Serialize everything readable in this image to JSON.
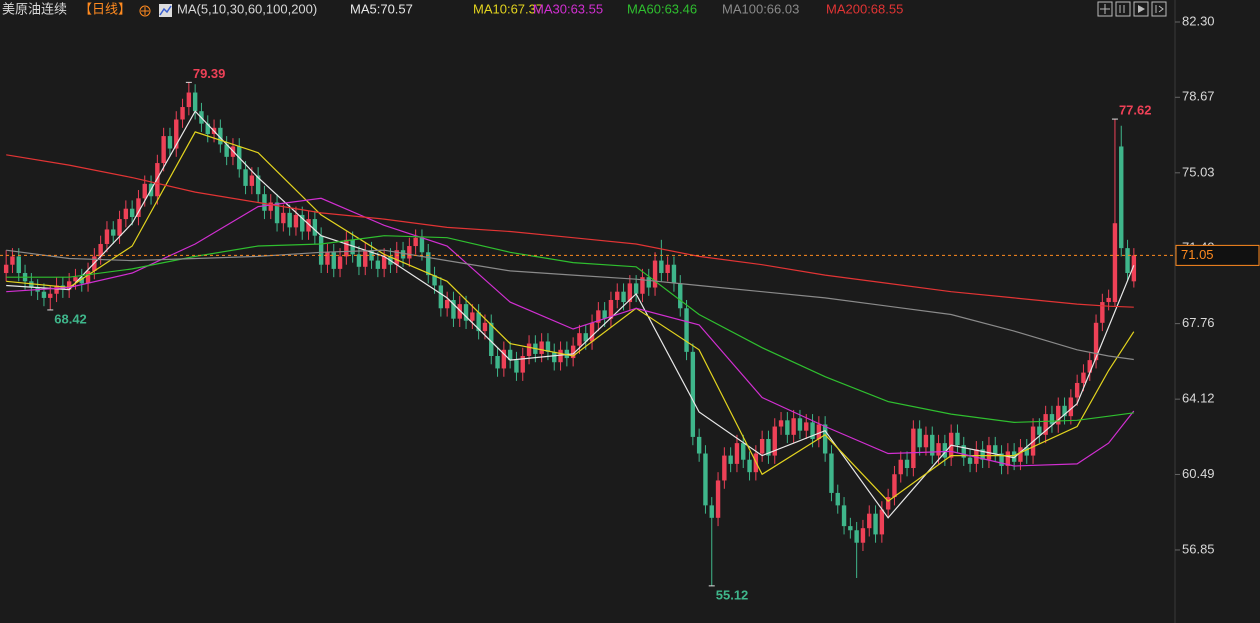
{
  "chart_data": {
    "type": "candlestick",
    "title": "美原油连续",
    "subtitle": "【日线】",
    "ma_label": "MA(5,10,30,60,100,200)",
    "up_color": "#ee4157",
    "down_color": "#3fb68b",
    "ylim": [
      53.33,
      83.36
    ],
    "yticks": [
      {
        "value": 82.3,
        "label": "82.30"
      },
      78.67,
      75.03,
      {
        "value": 71.4,
        "label": "71.40"
      },
      67.76,
      64.12,
      60.49,
      56.85
    ],
    "open": [
      70.2,
      70.6,
      71.0,
      70.2,
      69.8,
      69.5,
      69.3,
      69.0,
      69.2,
      69.6,
      69.4,
      69.8,
      70.0,
      69.7,
      70.3,
      71.0,
      71.6,
      72.3,
      72.0,
      72.8,
      73.3,
      72.9,
      73.8,
      74.5,
      73.9,
      75.5,
      76.8,
      76.2,
      77.6,
      78.2,
      78.9,
      78.0,
      77.4,
      76.9,
      77.2,
      76.4,
      75.8,
      76.3,
      75.2,
      74.4,
      74.9,
      74.0,
      73.2,
      73.6,
      72.6,
      73.1,
      72.4,
      73.0,
      72.2,
      72.8,
      72.0,
      70.6,
      71.2,
      70.4,
      71.0,
      71.8,
      71.1,
      70.5,
      71.3,
      70.8,
      70.4,
      71.0,
      70.6,
      71.3,
      70.9,
      71.5,
      71.9,
      71.2,
      70.1,
      69.6,
      68.5,
      68.9,
      68.0,
      68.7,
      67.9,
      68.3,
      67.4,
      67.8,
      66.2,
      65.6,
      66.5,
      66.0,
      65.4,
      66.2,
      66.8,
      66.3,
      66.9,
      66.4,
      65.9,
      66.5,
      66.1,
      66.7,
      67.3,
      66.9,
      67.8,
      68.4,
      68.0,
      68.9,
      69.3,
      68.8,
      69.7,
      69.2,
      70.0,
      69.5,
      70.8,
      70.2,
      70.6,
      69.7,
      68.5,
      66.4,
      62.3,
      61.5,
      59.0,
      58.4,
      60.2,
      61.4,
      61.0,
      62.0,
      61.2,
      60.6,
      61.5,
      62.2,
      61.4,
      62.8,
      63.1,
      62.4,
      63.2,
      62.6,
      63.0,
      62.2,
      62.9,
      61.5,
      59.6,
      59.0,
      58.0,
      57.8,
      57.2,
      57.9,
      58.6,
      57.6,
      58.8,
      59.4,
      60.5,
      61.2,
      60.8,
      62.7,
      61.8,
      62.4,
      61.4,
      62.0,
      61.3,
      62.5,
      61.9,
      61.3,
      61.0,
      61.7,
      61.2,
      61.9,
      61.5,
      60.9,
      61.6,
      61.1,
      61.8,
      61.4,
      62.8,
      62.4,
      63.4,
      62.9,
      63.8,
      63.3,
      64.2,
      64.9,
      65.4,
      66.0,
      67.8,
      68.8,
      68.8,
      76.3,
      71.4,
      69.8
    ],
    "high": [
      71.3,
      71.4,
      71.4,
      70.6,
      70.2,
      69.9,
      69.7,
      69.6,
      70.0,
      70.0,
      70.2,
      70.4,
      70.4,
      70.7,
      71.4,
      72.0,
      72.7,
      72.7,
      73.2,
      73.7,
      73.7,
      74.2,
      74.9,
      74.9,
      75.9,
      77.2,
      77.2,
      78.0,
      78.6,
      79.39,
      79.3,
      78.4,
      77.8,
      77.6,
      77.6,
      76.8,
      76.7,
      76.7,
      75.6,
      75.3,
      75.3,
      74.4,
      74.0,
      74.0,
      73.5,
      73.5,
      73.4,
      73.4,
      73.2,
      73.2,
      72.4,
      71.6,
      71.6,
      71.4,
      72.2,
      72.2,
      71.5,
      71.7,
      71.7,
      71.2,
      71.4,
      71.4,
      71.7,
      71.7,
      71.9,
      72.3,
      72.3,
      71.6,
      70.5,
      70.0,
      69.3,
      69.3,
      69.1,
      69.1,
      68.7,
      68.7,
      68.2,
      68.2,
      66.6,
      66.9,
      66.9,
      66.4,
      66.6,
      67.2,
      67.2,
      67.3,
      67.3,
      66.8,
      66.9,
      66.9,
      67.1,
      67.7,
      67.7,
      68.2,
      68.8,
      68.8,
      69.3,
      69.7,
      69.7,
      70.1,
      70.1,
      70.4,
      70.4,
      71.2,
      71.8,
      71.0,
      71.0,
      70.1,
      68.9,
      66.8,
      62.7,
      61.9,
      59.4,
      60.6,
      61.8,
      61.8,
      62.4,
      62.4,
      61.6,
      61.9,
      62.6,
      62.6,
      63.2,
      63.5,
      63.5,
      63.6,
      63.6,
      63.4,
      63.4,
      63.3,
      63.3,
      61.9,
      60.0,
      59.4,
      58.4,
      58.2,
      58.3,
      59.0,
      59.0,
      59.2,
      59.8,
      60.9,
      61.6,
      61.6,
      63.1,
      63.1,
      62.8,
      62.8,
      62.4,
      62.4,
      62.9,
      62.9,
      62.3,
      61.7,
      62.1,
      62.1,
      62.3,
      62.3,
      61.9,
      62.0,
      62.0,
      62.2,
      62.2,
      63.2,
      63.2,
      63.8,
      63.8,
      64.2,
      64.2,
      64.6,
      65.3,
      65.8,
      66.4,
      68.2,
      69.2,
      69.4,
      77.62,
      77.3,
      71.8,
      71.4
    ],
    "low": [
      69.8,
      70.2,
      69.8,
      69.4,
      69.1,
      68.9,
      68.6,
      68.42,
      68.8,
      69.0,
      69.0,
      69.4,
      69.3,
      69.3,
      69.9,
      70.6,
      71.2,
      71.6,
      71.6,
      72.4,
      72.5,
      72.5,
      73.4,
      73.5,
      73.5,
      75.1,
      75.8,
      75.8,
      77.2,
      77.8,
      77.6,
      77.0,
      76.5,
      76.5,
      76.0,
      75.4,
      75.4,
      74.8,
      74.0,
      74.0,
      73.6,
      72.8,
      72.8,
      72.2,
      72.2,
      72.0,
      72.0,
      71.8,
      71.8,
      71.6,
      70.2,
      70.2,
      70.0,
      70.0,
      70.6,
      70.7,
      70.1,
      70.1,
      70.4,
      70.0,
      70.0,
      70.2,
      70.2,
      70.5,
      70.5,
      71.1,
      70.8,
      69.7,
      69.2,
      68.1,
      68.1,
      67.6,
      67.6,
      67.5,
      67.5,
      67.0,
      67.0,
      65.8,
      65.2,
      65.2,
      65.6,
      65.0,
      65.0,
      65.8,
      65.9,
      65.9,
      66.0,
      65.5,
      65.5,
      65.7,
      65.7,
      66.3,
      66.5,
      66.5,
      67.4,
      67.6,
      67.6,
      68.5,
      68.4,
      68.4,
      68.8,
      68.8,
      69.1,
      69.1,
      69.8,
      69.8,
      69.3,
      68.1,
      66.0,
      61.9,
      61.1,
      58.6,
      55.12,
      58.0,
      59.8,
      60.6,
      60.6,
      60.8,
      60.2,
      60.2,
      61.1,
      61.0,
      61.0,
      62.4,
      62.0,
      62.0,
      62.2,
      62.2,
      61.8,
      61.8,
      61.1,
      59.2,
      58.6,
      57.6,
      57.4,
      55.5,
      56.8,
      57.5,
      57.2,
      57.2,
      58.4,
      59.0,
      60.1,
      60.4,
      60.4,
      61.4,
      61.4,
      61.0,
      61.0,
      60.9,
      60.9,
      61.5,
      60.9,
      60.6,
      60.6,
      60.8,
      60.8,
      61.1,
      60.5,
      60.5,
      60.7,
      60.7,
      61.0,
      61.0,
      62.0,
      62.0,
      62.5,
      62.5,
      62.9,
      62.9,
      63.8,
      64.5,
      65.0,
      65.6,
      67.4,
      68.4,
      68.6,
      71.0,
      69.8,
      69.5
    ],
    "close": [
      70.6,
      71.0,
      70.2,
      69.8,
      69.5,
      69.3,
      69.0,
      69.2,
      69.6,
      69.4,
      69.8,
      70.0,
      69.7,
      70.3,
      71.0,
      71.6,
      72.3,
      72.0,
      72.8,
      73.3,
      72.9,
      73.8,
      74.5,
      73.9,
      75.5,
      76.8,
      76.2,
      77.6,
      78.2,
      78.9,
      78.0,
      77.4,
      76.9,
      77.2,
      76.4,
      75.8,
      76.3,
      75.2,
      74.4,
      74.9,
      74.0,
      73.2,
      73.6,
      72.6,
      73.1,
      72.4,
      73.0,
      72.2,
      72.8,
      72.0,
      70.6,
      71.2,
      70.4,
      71.0,
      71.8,
      71.1,
      70.5,
      71.3,
      70.8,
      70.4,
      71.0,
      70.6,
      71.3,
      70.9,
      71.5,
      71.9,
      71.2,
      70.1,
      69.6,
      68.5,
      68.9,
      68.0,
      68.7,
      67.9,
      68.3,
      67.4,
      67.8,
      66.2,
      65.6,
      66.5,
      66.0,
      65.4,
      66.2,
      66.8,
      66.3,
      66.9,
      66.4,
      65.9,
      66.5,
      66.1,
      66.7,
      67.3,
      66.9,
      67.8,
      68.4,
      68.0,
      68.9,
      69.3,
      68.8,
      69.7,
      69.2,
      70.0,
      69.5,
      70.8,
      70.2,
      70.6,
      69.7,
      68.5,
      66.4,
      62.3,
      61.5,
      59.0,
      58.4,
      60.2,
      61.4,
      61.0,
      62.0,
      61.2,
      60.6,
      61.5,
      62.2,
      61.4,
      62.8,
      63.1,
      62.4,
      63.2,
      62.6,
      63.0,
      62.2,
      62.9,
      61.5,
      59.6,
      59.0,
      58.0,
      57.8,
      57.2,
      57.9,
      58.6,
      57.6,
      58.8,
      59.4,
      60.5,
      61.2,
      60.8,
      62.7,
      61.8,
      62.4,
      61.4,
      62.0,
      61.3,
      62.5,
      61.9,
      61.3,
      61.0,
      61.7,
      61.2,
      61.9,
      61.5,
      60.9,
      61.6,
      61.1,
      61.8,
      61.4,
      62.8,
      62.4,
      63.4,
      62.9,
      63.8,
      63.3,
      64.2,
      64.9,
      65.4,
      66.0,
      67.8,
      68.8,
      69.0,
      72.6,
      71.4,
      70.2,
      71.05
    ],
    "series": [
      {
        "name": "MA5:70.57",
        "color": "#e8e8e8",
        "x": [
          0,
          10,
          20,
          30,
          40,
          50,
          60,
          70,
          80,
          90,
          100,
          110,
          120,
          130,
          140,
          150,
          160,
          170,
          175,
          179
        ],
        "values": [
          69.6,
          69.4,
          72.6,
          78.0,
          74.8,
          72.0,
          71.0,
          69.0,
          66.0,
          66.3,
          69.2,
          63.5,
          61.4,
          62.6,
          58.4,
          61.9,
          61.3,
          63.9,
          67.6,
          70.57
        ]
      },
      {
        "name": "MA10:67.37",
        "color": "#e3d41f",
        "x": [
          0,
          10,
          20,
          30,
          40,
          50,
          60,
          70,
          80,
          90,
          100,
          110,
          120,
          130,
          140,
          150,
          160,
          170,
          175,
          179
        ],
        "values": [
          69.8,
          69.5,
          71.5,
          77.0,
          76.0,
          73.0,
          71.1,
          69.8,
          66.8,
          66.2,
          68.5,
          66.5,
          60.5,
          62.4,
          59.2,
          61.4,
          61.4,
          62.8,
          65.5,
          67.37
        ]
      },
      {
        "name": "MA30:63.55",
        "color": "#d12fd1",
        "x": [
          0,
          10,
          20,
          30,
          40,
          50,
          60,
          70,
          80,
          90,
          100,
          110,
          120,
          130,
          140,
          150,
          160,
          170,
          175,
          179
        ],
        "values": [
          69.3,
          69.5,
          70.2,
          71.6,
          73.4,
          73.8,
          72.5,
          71.5,
          68.8,
          67.5,
          68.5,
          67.7,
          64.2,
          62.8,
          61.5,
          61.6,
          60.9,
          61.0,
          62.0,
          63.55
        ]
      },
      {
        "name": "MA60:63.46",
        "color": "#2fbf2f",
        "x": [
          0,
          10,
          20,
          30,
          40,
          50,
          60,
          70,
          80,
          90,
          100,
          110,
          120,
          130,
          140,
          150,
          160,
          170,
          175,
          179
        ],
        "values": [
          70.0,
          70.0,
          70.4,
          71.0,
          71.5,
          71.6,
          72.0,
          71.9,
          71.2,
          70.7,
          70.5,
          68.2,
          66.6,
          65.2,
          64.0,
          63.4,
          63.0,
          63.1,
          63.3,
          63.46
        ]
      },
      {
        "name": "MA100:66.03",
        "color": "#8a8a8a",
        "x": [
          0,
          10,
          20,
          30,
          40,
          50,
          60,
          70,
          80,
          90,
          100,
          110,
          120,
          130,
          140,
          150,
          160,
          170,
          175,
          179
        ],
        "values": [
          71.3,
          70.9,
          70.8,
          70.9,
          71.0,
          71.2,
          71.3,
          70.8,
          70.3,
          70.1,
          69.9,
          69.6,
          69.3,
          69.0,
          68.6,
          68.2,
          67.4,
          66.5,
          66.2,
          66.03
        ]
      },
      {
        "name": "MA200:68.55",
        "color": "#e23434",
        "x": [
          0,
          10,
          20,
          30,
          40,
          50,
          60,
          70,
          80,
          90,
          100,
          110,
          120,
          130,
          140,
          150,
          160,
          170,
          175,
          179
        ],
        "values": [
          75.9,
          75.4,
          74.8,
          74.1,
          73.6,
          73.1,
          72.8,
          72.4,
          72.2,
          71.9,
          71.6,
          71.0,
          70.6,
          70.1,
          69.7,
          69.3,
          69.0,
          68.7,
          68.6,
          68.55
        ]
      }
    ],
    "annotations": [
      {
        "text": "79.39",
        "x": 29,
        "y": 79.39,
        "kind": "high"
      },
      {
        "text": "68.42",
        "x": 7,
        "y": 68.42,
        "kind": "low"
      },
      {
        "text": "55.12",
        "x": 112,
        "y": 55.12,
        "kind": "low"
      },
      {
        "text": "77.62",
        "x": 176,
        "y": 77.62,
        "kind": "high"
      }
    ]
  }
}
